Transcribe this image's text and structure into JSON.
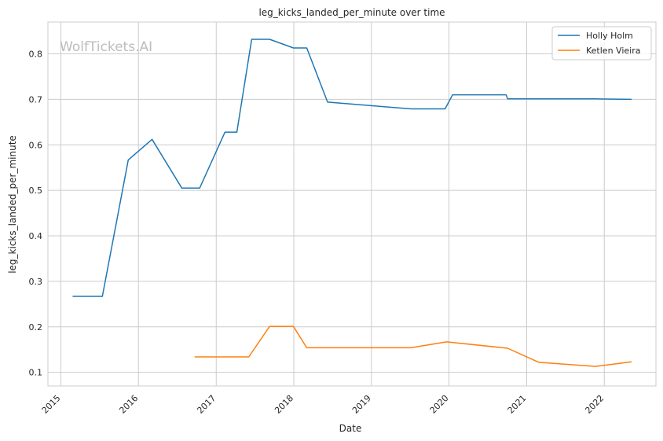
{
  "chart_data": {
    "type": "line",
    "title": "leg_kicks_landed_per_minute over time",
    "xlabel": "Date",
    "ylabel": "leg_kicks_landed_per_minute",
    "watermark": "WolfTickets.AI",
    "x_type": "date",
    "xlim": [
      "2014-11-01",
      "2022-09-01"
    ],
    "ylim": [
      0.07,
      0.87
    ],
    "x_ticks": [
      "2015",
      "2016",
      "2017",
      "2018",
      "2019",
      "2020",
      "2021",
      "2022"
    ],
    "y_ticks": [
      "0.1",
      "0.2",
      "0.3",
      "0.4",
      "0.5",
      "0.6",
      "0.7",
      "0.8"
    ],
    "x_tick_rotation": 45,
    "grid": true,
    "legend_position": "top-right",
    "series": [
      {
        "name": "Holly Holm",
        "color": "#1f77b4",
        "points": [
          {
            "x": "2015-02-28",
            "y": 0.267
          },
          {
            "x": "2015-07-15",
            "y": 0.267
          },
          {
            "x": "2015-11-14",
            "y": 0.567
          },
          {
            "x": "2016-03-05",
            "y": 0.612
          },
          {
            "x": "2016-07-23",
            "y": 0.505
          },
          {
            "x": "2016-10-15",
            "y": 0.505
          },
          {
            "x": "2017-02-11",
            "y": 0.628
          },
          {
            "x": "2017-04-08",
            "y": 0.628
          },
          {
            "x": "2017-06-17",
            "y": 0.832
          },
          {
            "x": "2017-09-09",
            "y": 0.832
          },
          {
            "x": "2017-12-30",
            "y": 0.813
          },
          {
            "x": "2018-03-03",
            "y": 0.813
          },
          {
            "x": "2018-06-09",
            "y": 0.694
          },
          {
            "x": "2019-07-06",
            "y": 0.679
          },
          {
            "x": "2019-12-14",
            "y": 0.679
          },
          {
            "x": "2020-01-18",
            "y": 0.71
          },
          {
            "x": "2020-09-26",
            "y": 0.71
          },
          {
            "x": "2020-10-03",
            "y": 0.701
          },
          {
            "x": "2021-11-20",
            "y": 0.701
          },
          {
            "x": "2022-05-07",
            "y": 0.7
          }
        ]
      },
      {
        "name": "Ketlen Vieira",
        "color": "#ff7f0e",
        "points": [
          {
            "x": "2016-09-24",
            "y": 0.134
          },
          {
            "x": "2017-06-03",
            "y": 0.134
          },
          {
            "x": "2017-09-09",
            "y": 0.201
          },
          {
            "x": "2017-12-30",
            "y": 0.201
          },
          {
            "x": "2018-03-03",
            "y": 0.154
          },
          {
            "x": "2019-07-06",
            "y": 0.154
          },
          {
            "x": "2019-12-21",
            "y": 0.167
          },
          {
            "x": "2020-10-03",
            "y": 0.153
          },
          {
            "x": "2021-02-27",
            "y": 0.122
          },
          {
            "x": "2021-11-20",
            "y": 0.113
          },
          {
            "x": "2022-05-07",
            "y": 0.123
          }
        ]
      }
    ]
  }
}
